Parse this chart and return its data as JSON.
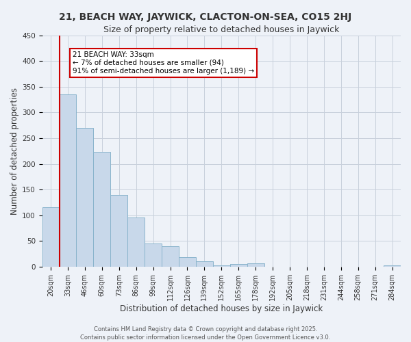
{
  "title": "21, BEACH WAY, JAYWICK, CLACTON-ON-SEA, CO15 2HJ",
  "subtitle": "Size of property relative to detached houses in Jaywick",
  "xlabel": "Distribution of detached houses by size in Jaywick",
  "ylabel": "Number of detached properties",
  "bar_color": "#c8d8ea",
  "bar_edge_color": "#8ab4cc",
  "categories": [
    "20sqm",
    "33sqm",
    "46sqm",
    "60sqm",
    "73sqm",
    "86sqm",
    "99sqm",
    "112sqm",
    "126sqm",
    "139sqm",
    "152sqm",
    "165sqm",
    "178sqm",
    "192sqm",
    "205sqm",
    "218sqm",
    "231sqm",
    "244sqm",
    "258sqm",
    "271sqm",
    "284sqm"
  ],
  "values": [
    115,
    335,
    270,
    224,
    140,
    95,
    45,
    40,
    18,
    10,
    3,
    5,
    6,
    0,
    0,
    0,
    0,
    0,
    0,
    0,
    2
  ],
  "ylim": [
    0,
    450
  ],
  "yticks": [
    0,
    50,
    100,
    150,
    200,
    250,
    300,
    350,
    400,
    450
  ],
  "marker_bar_index": 1,
  "marker_color": "#cc0000",
  "annotation_title": "21 BEACH WAY: 33sqm",
  "annotation_line1": "← 7% of detached houses are smaller (94)",
  "annotation_line2": "91% of semi-detached houses are larger (1,189) →",
  "annotation_box_color": "#ffffff",
  "annotation_box_edge": "#cc0000",
  "footer1": "Contains HM Land Registry data © Crown copyright and database right 2025.",
  "footer2": "Contains public sector information licensed under the Open Government Licence v3.0.",
  "background_color": "#eef2f8",
  "grid_color": "#c8d0dc",
  "title_fontsize": 10,
  "subtitle_fontsize": 9,
  "tick_fontsize": 7,
  "label_fontsize": 8.5,
  "footer_fontsize": 6,
  "annotation_fontsize": 7.5
}
